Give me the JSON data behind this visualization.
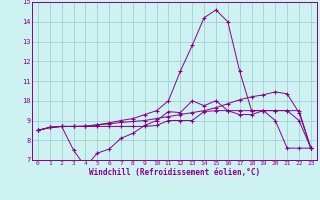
{
  "xlabel": "Windchill (Refroidissement éolien,°C)",
  "bg_color": "#cef2f2",
  "line_color": "#880088",
  "grid_color": "#99cccc",
  "xlim": [
    -0.5,
    23.5
  ],
  "ylim": [
    7,
    15
  ],
  "xticks": [
    0,
    1,
    2,
    3,
    4,
    5,
    6,
    7,
    8,
    9,
    10,
    11,
    12,
    13,
    14,
    15,
    16,
    17,
    18,
    19,
    20,
    21,
    22,
    23
  ],
  "yticks": [
    7,
    8,
    9,
    10,
    11,
    12,
    13,
    14,
    15
  ],
  "series1_x": [
    0,
    1,
    2,
    3,
    4,
    5,
    6,
    7,
    8,
    9,
    10,
    11,
    12,
    13,
    14,
    15,
    16,
    17,
    18,
    19,
    20,
    21,
    22,
    23
  ],
  "series1_y": [
    8.5,
    8.65,
    8.7,
    7.5,
    6.65,
    7.35,
    7.55,
    8.1,
    8.35,
    8.75,
    9.0,
    9.45,
    9.4,
    10.0,
    9.75,
    10.0,
    9.5,
    9.3,
    9.3,
    9.5,
    9.0,
    7.6,
    7.6,
    7.6
  ],
  "series2_x": [
    0,
    1,
    2,
    3,
    4,
    5,
    6,
    7,
    8,
    9,
    10,
    11,
    12,
    13,
    14,
    15,
    16,
    17,
    18,
    19,
    20,
    21,
    22,
    23
  ],
  "series2_y": [
    8.5,
    8.65,
    8.7,
    8.7,
    8.7,
    8.7,
    8.7,
    8.7,
    8.7,
    8.7,
    8.75,
    9.0,
    9.0,
    9.0,
    9.45,
    9.5,
    9.5,
    9.5,
    9.5,
    9.5,
    9.5,
    9.5,
    9.5,
    7.6
  ],
  "series3_x": [
    0,
    1,
    2,
    3,
    4,
    5,
    6,
    7,
    8,
    9,
    10,
    11,
    12,
    13,
    14,
    15,
    16,
    17,
    18,
    19,
    20,
    21,
    22,
    23
  ],
  "series3_y": [
    8.5,
    8.65,
    8.7,
    8.7,
    8.72,
    8.78,
    8.83,
    8.9,
    8.95,
    9.0,
    9.1,
    9.2,
    9.3,
    9.4,
    9.5,
    9.65,
    9.85,
    10.05,
    10.2,
    10.3,
    10.45,
    10.35,
    9.4,
    7.6
  ],
  "series4_x": [
    0,
    1,
    2,
    3,
    4,
    5,
    6,
    7,
    8,
    9,
    10,
    11,
    12,
    13,
    14,
    15,
    16,
    17,
    18,
    19,
    20,
    21,
    22,
    23
  ],
  "series4_y": [
    8.5,
    8.65,
    8.7,
    8.7,
    8.7,
    8.78,
    8.88,
    9.0,
    9.1,
    9.3,
    9.5,
    10.0,
    11.5,
    12.8,
    14.2,
    14.6,
    14.0,
    11.5,
    9.5,
    9.5,
    9.5,
    9.5,
    9.0,
    7.6
  ]
}
